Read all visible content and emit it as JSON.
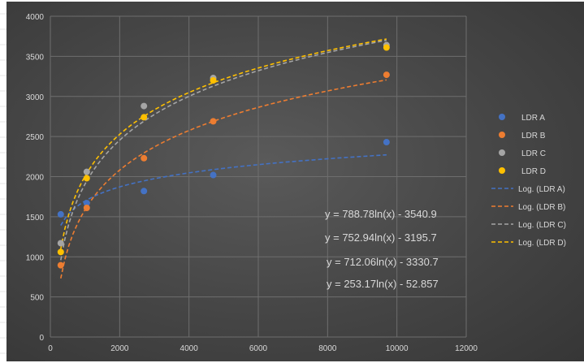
{
  "chart_data": {
    "type": "scatter",
    "title": "",
    "xlabel": "",
    "ylabel": "",
    "xlim": [
      0,
      12000
    ],
    "ylim": [
      0,
      4000
    ],
    "x_ticks": [
      0,
      2000,
      4000,
      6000,
      8000,
      10000,
      12000
    ],
    "y_ticks": [
      0,
      500,
      1000,
      1500,
      2000,
      2500,
      3000,
      3500,
      4000
    ],
    "grid": true,
    "legend_position": "right",
    "series": [
      {
        "name": "LDR A",
        "color": "#4472c4",
        "points": [
          [
            300,
            1530
          ],
          [
            1050,
            1670
          ],
          [
            2700,
            1820
          ],
          [
            4700,
            2020
          ],
          [
            9700,
            2430
          ]
        ]
      },
      {
        "name": "LDR B",
        "color": "#ed7d31",
        "points": [
          [
            300,
            895
          ],
          [
            1050,
            1610
          ],
          [
            2700,
            2230
          ],
          [
            4700,
            2690
          ],
          [
            9700,
            3270
          ]
        ]
      },
      {
        "name": "LDR C",
        "color": "#a5a5a5",
        "points": [
          [
            300,
            1170
          ],
          [
            1050,
            2060
          ],
          [
            2700,
            2880
          ],
          [
            4700,
            3230
          ],
          [
            9700,
            3640
          ]
        ]
      },
      {
        "name": "LDR D",
        "color": "#ffc000",
        "points": [
          [
            300,
            1060
          ],
          [
            1050,
            1980
          ],
          [
            2700,
            2740
          ],
          [
            4700,
            3200
          ],
          [
            9700,
            3610
          ]
        ]
      }
    ],
    "trendlines": [
      {
        "name": "Log. (LDR A)",
        "color": "#4472c4",
        "a": 253.17,
        "b": -52.857
      },
      {
        "name": "Log. (LDR B)",
        "color": "#ed7d31",
        "a": 712.06,
        "b": -3330.7
      },
      {
        "name": "Log. (LDR C)",
        "color": "#a5a5a5",
        "a": 788.78,
        "b": -3540.9
      },
      {
        "name": "Log. (LDR D)",
        "color": "#ffc000",
        "a": 752.94,
        "b": -3195.7
      }
    ],
    "equations": [
      "y = 788.78ln(x) - 3540.9",
      "y = 752.94ln(x) - 3195.7",
      "y = 712.06ln(x) - 3330.7",
      "y = 253.17ln(x) - 52.857"
    ]
  }
}
